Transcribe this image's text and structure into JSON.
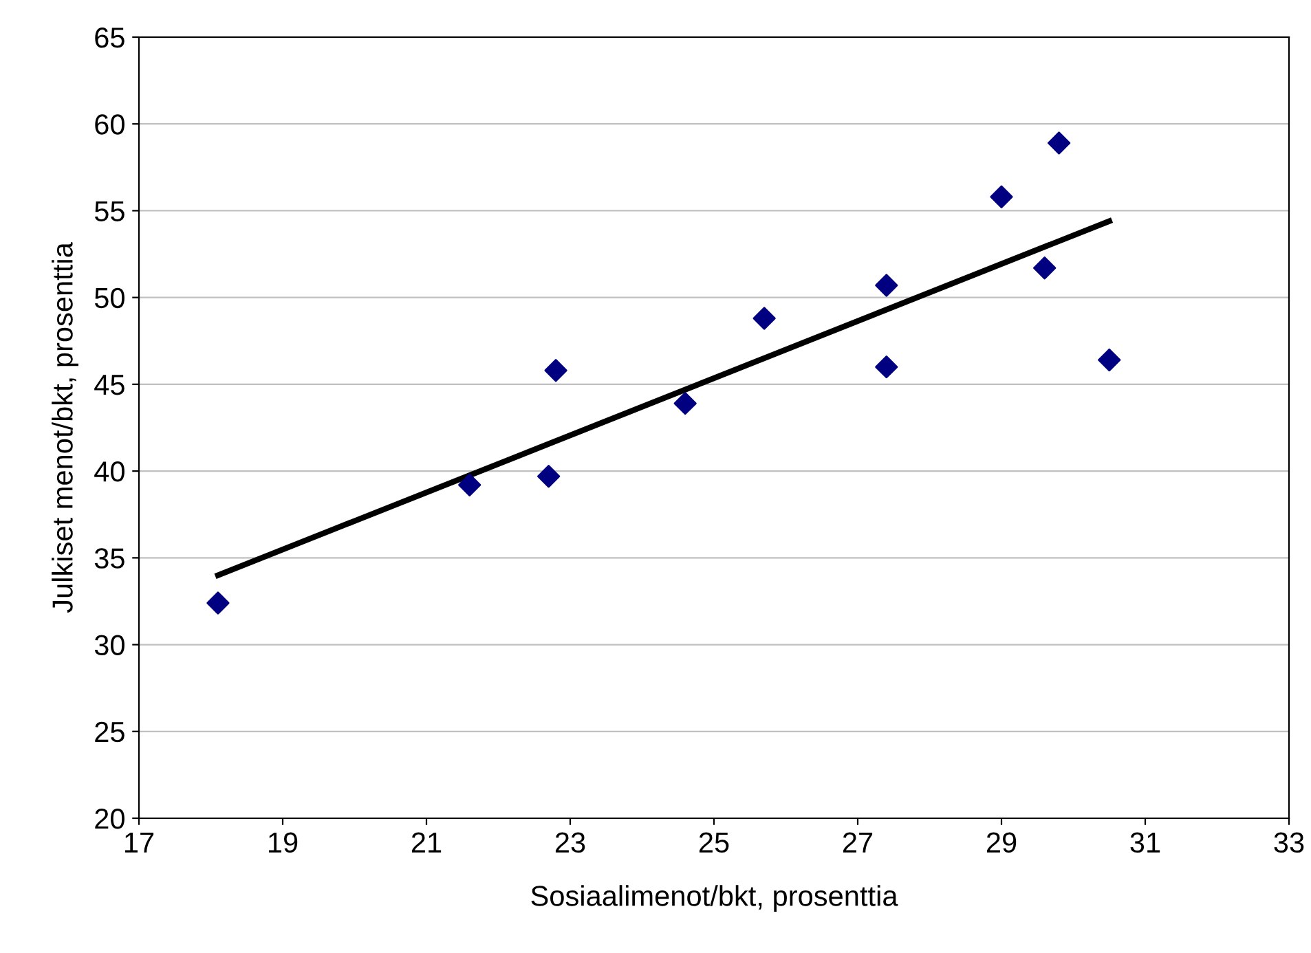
{
  "chart_data": {
    "type": "scatter",
    "xlabel": "Sosiaalimenot/bkt, prosenttia",
    "ylabel": "Julkiset menot/bkt, prosenttia",
    "xlim": [
      17,
      33
    ],
    "xticks": [
      17,
      19,
      21,
      23,
      25,
      27,
      29,
      31,
      33
    ],
    "ylim": [
      20,
      65
    ],
    "yticks": [
      20,
      25,
      30,
      35,
      40,
      45,
      50,
      55,
      60,
      65
    ],
    "grid": "y",
    "series": [
      {
        "color": "#000080",
        "marker": "diamond",
        "x": [
          18.1,
          21.6,
          22.7,
          22.8,
          24.6,
          25.7,
          27.4,
          27.4,
          29.0,
          29.8,
          29.6,
          30.5
        ],
        "values": [
          32.4,
          39.2,
          39.7,
          45.8,
          43.9,
          48.8,
          50.7,
          46.0,
          55.8,
          58.9,
          51.7,
          46.4
        ]
      },
      {
        "type": "line",
        "color": "#000000",
        "marker": "none",
        "line_style": "solid",
        "x": [
          18.1,
          30.5
        ],
        "values": [
          34.0,
          54.4
        ]
      }
    ]
  }
}
